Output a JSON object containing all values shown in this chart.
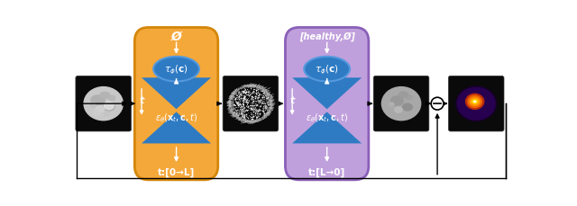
{
  "fig_width": 6.4,
  "fig_height": 2.3,
  "dpi": 100,
  "bg_color": "#ffffff",
  "orange_box_color": "#F5A83A",
  "orange_box_edge": "#D4870A",
  "purple_box_color": "#C0A0DC",
  "purple_box_edge": "#8A60B8",
  "blue_ellipse_color": "#2E7BC4",
  "blue_ellipse_edge": "#5599DD",
  "blue_unet_color": "#2E7BC4",
  "black_img_color": "#0a0a0a",
  "white_text": "#ffffff",
  "label_empty_set_1": "Ø",
  "label_empty_set_2": "[healthy,Ø]",
  "label_t_left": "t:[0→L]",
  "label_t_right": "t:[L→0]",
  "label_t": "t"
}
